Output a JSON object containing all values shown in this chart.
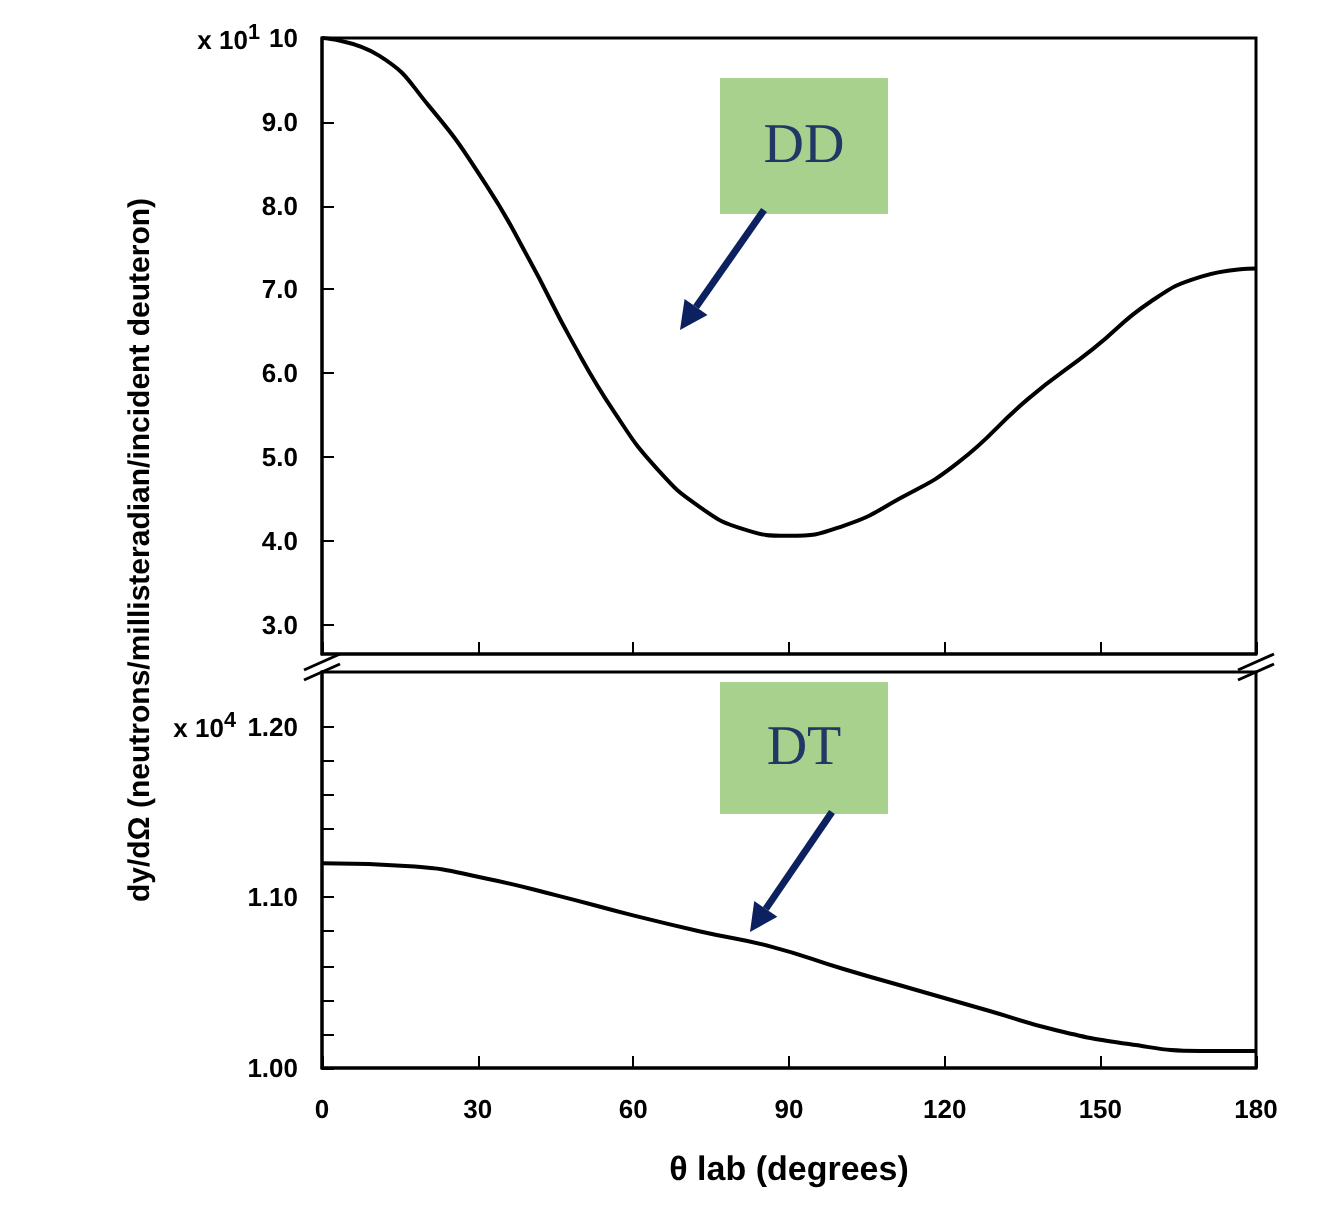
{
  "chart_data": [
    {
      "type": "line",
      "ylabel": "dy/dΩ (neutrons/millisteradian/incident deuteron)",
      "annotations": [
        "x 10$^{1}$",
        "DD"
      ],
      "x": [
        0,
        11,
        20.6,
        31.6,
        39.9,
        48.2,
        56.4,
        64.7,
        72.9,
        81.2,
        90,
        100.5,
        111.5,
        122.5,
        136.2,
        148.6,
        159.6,
        169.3,
        180
      ],
      "series": [
        {
          "color": "#000000",
          "values": [
            10.0,
            9.79,
            9.19,
            8.25,
            7.36,
            6.38,
            5.53,
            4.85,
            4.4,
            4.14,
            4.06,
            4.18,
            4.51,
            4.93,
            5.7,
            6.29,
            6.85,
            7.15,
            7.25
          ]
        }
      ],
      "xlim": [
        0,
        180
      ],
      "xticks": [
        0,
        30,
        60,
        90,
        120,
        150,
        180
      ],
      "ylim": [
        2.65,
        10
      ],
      "yticks": [
        10,
        {
          "value": 9,
          "label": "9.0"
        },
        {
          "value": 8,
          "label": "8.0"
        },
        {
          "value": 7,
          "label": "7.0"
        },
        {
          "value": 6,
          "label": "6.0"
        },
        {
          "value": 5,
          "label": "5.0"
        },
        {
          "value": 4,
          "label": "4.0"
        },
        {
          "value": 3,
          "label": "3.0"
        }
      ],
      "tick_labels": "y"
    },
    {
      "type": "line",
      "xlabel": "θ lab (degrees)",
      "annotations": [
        "x 10$^{4}$",
        "DT"
      ],
      "x": [
        0,
        17.9,
        31.6,
        45.4,
        59.2,
        72.9,
        86.7,
        100.5,
        114.2,
        128,
        141.7,
        155.5,
        169.3,
        180
      ],
      "series": [
        {
          "color": "#000000",
          "values": [
            1.12,
            1.118,
            1.111,
            1.101,
            1.09,
            1.08,
            1.071,
            1.058,
            1.046,
            1.034,
            1.022,
            1.014,
            1.01,
            1.01
          ]
        }
      ],
      "xlim": [
        0,
        180
      ],
      "xticks": [
        0,
        30,
        60,
        90,
        120,
        150,
        180
      ],
      "ylim": [
        1.0,
        1.232
      ],
      "yticks": [
        {
          "value": 1.2,
          "label": "1.20"
        },
        {
          "value": 1.1,
          "label": "1.10"
        },
        {
          "value": 1.0,
          "label": "1.00"
        },
        {
          "value": 1.02,
          "label": null
        },
        {
          "value": 1.04,
          "label": null
        },
        {
          "value": 1.06,
          "label": null
        },
        {
          "value": 1.08,
          "label": null
        },
        {
          "value": 1.12,
          "label": null
        },
        {
          "value": 1.14,
          "label": null
        },
        {
          "value": 1.16,
          "label": null
        },
        {
          "value": 1.18,
          "label": null
        }
      ]
    }
  ]
}
